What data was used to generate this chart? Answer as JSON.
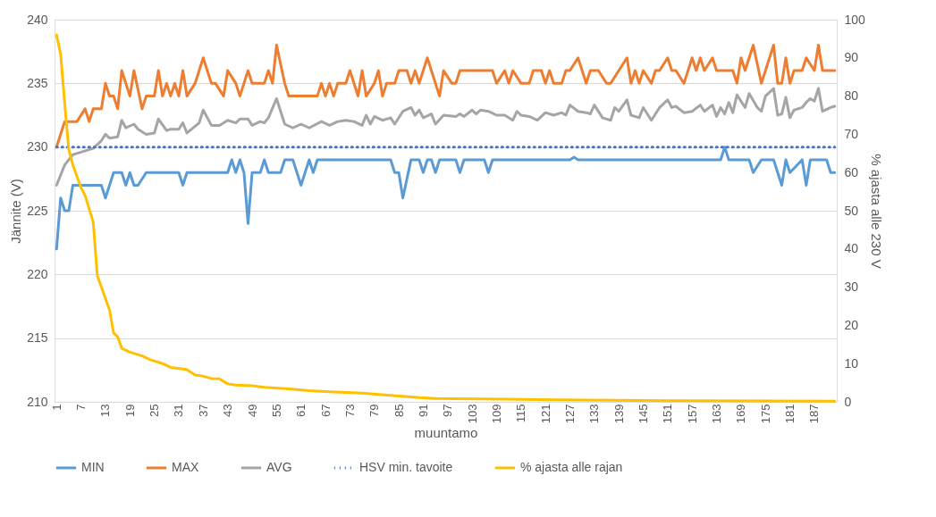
{
  "chart_data": {
    "type": "line",
    "xlabel": "muuntamo",
    "ylabel": "Jännite (V)",
    "y2label": "% ajasta alle 230 V",
    "xlim": [
      0.5,
      192.5
    ],
    "xticks": [
      1,
      7,
      13,
      19,
      25,
      31,
      37,
      43,
      49,
      55,
      61,
      67,
      73,
      79,
      85,
      91,
      97,
      103,
      109,
      115,
      121,
      127,
      133,
      139,
      145,
      151,
      157,
      163,
      169,
      175,
      181,
      187
    ],
    "ylim": [
      210,
      240
    ],
    "yticks": [
      210,
      215,
      220,
      225,
      230,
      235,
      240
    ],
    "y2lim": [
      0,
      100
    ],
    "y2ticks": [
      0,
      10,
      20,
      30,
      40,
      50,
      60,
      70,
      80,
      90,
      100
    ],
    "grid": "y",
    "legend": "bottom",
    "line_style": "solid",
    "series": [
      {
        "name": "MIN",
        "color": "#5b9bd5",
        "x": [
          1,
          2,
          3,
          4,
          5,
          12,
          13,
          15,
          17,
          18,
          19,
          20,
          21,
          23,
          31,
          32,
          33,
          43,
          44,
          45,
          46,
          47,
          48,
          49,
          51,
          52,
          53,
          56,
          57,
          59,
          61,
          63,
          64,
          65,
          83,
          84,
          85,
          86,
          88,
          90,
          91,
          92,
          93,
          94,
          95,
          99,
          100,
          101,
          106,
          107,
          108,
          127,
          128,
          129,
          164,
          165,
          166,
          171,
          172,
          174,
          177,
          178,
          179,
          180,
          181,
          184,
          185,
          186,
          187,
          190,
          191,
          192
        ],
        "values": [
          222,
          226,
          225,
          225,
          227,
          227,
          226,
          228,
          228,
          227,
          228,
          227,
          227,
          228,
          228,
          227,
          228,
          228,
          229,
          228,
          229,
          228,
          224,
          228,
          228,
          229,
          228,
          228,
          229,
          229,
          227,
          229,
          228,
          229,
          229,
          228,
          228,
          226,
          229,
          229,
          228,
          229,
          229,
          228,
          229,
          229,
          228,
          229,
          229,
          228,
          229,
          229,
          229.2,
          229,
          229,
          230,
          229,
          229,
          228,
          229,
          229,
          228,
          227,
          229,
          228,
          229,
          227,
          229,
          229,
          229,
          228,
          228
        ]
      },
      {
        "name": "MAX",
        "color": "#ed7d31",
        "x": [
          1,
          3,
          6,
          8,
          9,
          10,
          12,
          13,
          14,
          15,
          16,
          17,
          19,
          20,
          22,
          23,
          25,
          26,
          27,
          28,
          29,
          30,
          31,
          32,
          33,
          35,
          37,
          39,
          40,
          42,
          43,
          45,
          46,
          48,
          49,
          52,
          53,
          54,
          55,
          57,
          58,
          65,
          66,
          67,
          68,
          69,
          70,
          72,
          73,
          75,
          76,
          77,
          79,
          80,
          81,
          82,
          84,
          85,
          87,
          88,
          89,
          90,
          92,
          95,
          96,
          98,
          99,
          100,
          108,
          109,
          111,
          112,
          113,
          115,
          117,
          118,
          120,
          121,
          122,
          123,
          125,
          126,
          127,
          129,
          131,
          132,
          134,
          136,
          137,
          139,
          141,
          142,
          143,
          144,
          145,
          147,
          148,
          149,
          151,
          152,
          153,
          155,
          157,
          158,
          159,
          160,
          162,
          163,
          165,
          167,
          168,
          169,
          170,
          172,
          174,
          175,
          177,
          178,
          179,
          180,
          181,
          182,
          184,
          185,
          187,
          188,
          189,
          192
        ],
        "values": [
          230,
          232,
          232,
          233,
          232,
          233,
          233,
          235,
          234,
          234,
          233,
          236,
          234,
          236,
          233,
          234,
          234,
          236,
          234,
          235,
          234,
          235,
          234,
          236,
          234,
          235,
          237,
          235,
          235,
          234,
          236,
          235,
          234,
          236,
          235,
          235,
          236,
          235,
          238,
          235,
          234,
          234,
          235,
          234,
          235,
          234,
          235,
          235,
          236,
          234,
          236,
          234,
          235,
          236,
          234,
          235,
          235,
          236,
          236,
          235,
          236,
          235,
          237,
          234,
          236,
          235,
          235,
          236,
          236,
          235,
          236,
          235,
          236,
          235,
          235,
          236,
          236,
          235,
          236,
          235,
          235,
          236,
          236,
          237,
          235,
          236,
          236,
          235,
          235,
          236,
          237,
          235,
          236,
          235,
          236,
          235,
          236,
          236,
          237,
          236,
          236,
          235,
          237,
          236,
          237,
          236,
          237,
          236,
          236,
          236,
          235,
          237,
          236,
          238,
          235,
          236,
          238,
          235,
          235,
          237,
          235,
          236,
          236,
          237,
          236,
          238,
          236,
          236
        ]
      },
      {
        "name": "AVG",
        "color": "#a5a5a5",
        "x": [
          1,
          3,
          5,
          7,
          10,
          12,
          13,
          14,
          16,
          17,
          18,
          20,
          21,
          23,
          25,
          26,
          28,
          29,
          31,
          32,
          33,
          36,
          37,
          39,
          41,
          43,
          45,
          46,
          48,
          49,
          51,
          52,
          53,
          55,
          57,
          59,
          61,
          63,
          66,
          68,
          70,
          72,
          74,
          76,
          77,
          78,
          79,
          81,
          83,
          84,
          86,
          88,
          89,
          90,
          91,
          93,
          94,
          96,
          99,
          100,
          101,
          103,
          104,
          105,
          107,
          109,
          111,
          113,
          114,
          115,
          117,
          119,
          121,
          123,
          125,
          126,
          127,
          129,
          131,
          132,
          133,
          135,
          137,
          138,
          139,
          141,
          142,
          144,
          145,
          147,
          149,
          151,
          152,
          153,
          155,
          157,
          159,
          160,
          162,
          163,
          164,
          165,
          166,
          167,
          168,
          170,
          171,
          173,
          174,
          175,
          177,
          178,
          179,
          180,
          181,
          182,
          184,
          185,
          186,
          187,
          188,
          189,
          191,
          192
        ],
        "values": [
          227,
          228.6,
          229.4,
          229.6,
          229.9,
          230.5,
          231,
          230.7,
          230.8,
          232.1,
          231.5,
          231.8,
          231.4,
          231,
          231.1,
          232.2,
          231.3,
          231.4,
          231.4,
          231.9,
          231.1,
          231.9,
          232.9,
          231.7,
          231.7,
          232.1,
          231.9,
          232.2,
          232.2,
          231.7,
          232,
          231.9,
          232.3,
          233.8,
          231.8,
          231.5,
          231.8,
          231.5,
          232,
          231.7,
          232,
          232.1,
          232,
          231.7,
          232.5,
          231.8,
          232.4,
          232.1,
          232.3,
          231.8,
          232.8,
          233.1,
          232.5,
          232.9,
          232.3,
          232.6,
          231.8,
          232.5,
          232.4,
          232.6,
          232.4,
          232.9,
          232.6,
          232.9,
          232.8,
          232.5,
          232.5,
          232.1,
          232.8,
          232.5,
          232.4,
          232.1,
          232.7,
          232.5,
          232.7,
          232.5,
          233.3,
          232.8,
          232.7,
          232.6,
          233.3,
          232.3,
          232.1,
          233.1,
          232.8,
          233.7,
          232.5,
          232.3,
          233.1,
          232.1,
          233.1,
          233.7,
          233.1,
          233.2,
          232.7,
          232.8,
          233.3,
          232.8,
          233.3,
          232.4,
          233.1,
          232.6,
          233.5,
          232.7,
          234.1,
          233.1,
          234.2,
          233.1,
          232.8,
          234,
          234.6,
          232.5,
          232.6,
          233.9,
          232.3,
          232.9,
          233.1,
          233.5,
          233.8,
          233.6,
          234.6,
          232.8,
          233.1,
          233.2
        ]
      },
      {
        "name": "HSV min. tavoite",
        "color": "#4472c4",
        "line_style": "dotted",
        "x": [
          1,
          192
        ],
        "values": [
          230,
          230
        ]
      },
      {
        "name": "% ajasta alle rajan",
        "color": "#ffc000",
        "axis": "y2",
        "x": [
          1,
          2,
          3,
          4,
          5,
          7,
          8,
          10,
          11,
          14,
          15,
          16,
          17,
          19,
          22,
          24,
          27,
          29,
          32,
          33,
          35,
          37,
          39,
          41,
          43,
          45,
          49,
          52,
          58,
          63,
          68,
          76,
          80,
          85,
          90,
          94,
          98,
          111,
          124,
          151,
          192
        ],
        "values": [
          96,
          91,
          78,
          66,
          62,
          56,
          54,
          47,
          33,
          24,
          18,
          17,
          14,
          13,
          12,
          11,
          10,
          9,
          8.6,
          8.4,
          7,
          6.7,
          6.1,
          6,
          4.7,
          4.4,
          4.2,
          3.8,
          3.4,
          2.9,
          2.6,
          2.3,
          1.9,
          1.5,
          1.1,
          0.9,
          0.8,
          0.7,
          0.5,
          0.3,
          0.2
        ]
      }
    ]
  }
}
